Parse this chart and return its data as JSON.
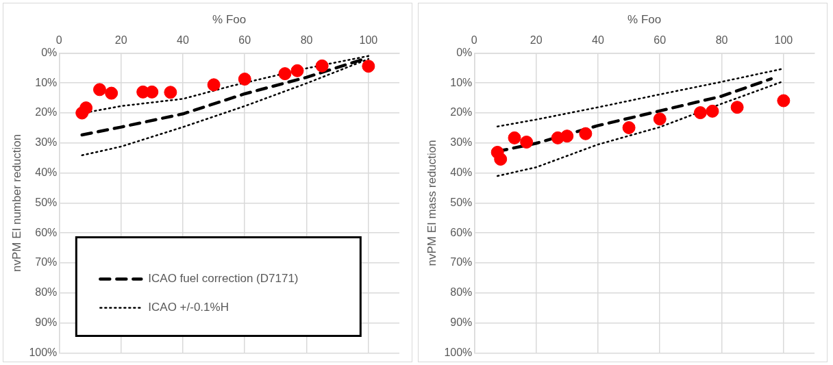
{
  "chart_data": [
    {
      "type": "scatter",
      "xlabel": "% Foo",
      "ylabel": "nvPM EI number reduction",
      "xlim": [
        0,
        110
      ],
      "xticks": [
        0,
        20,
        40,
        60,
        80,
        100
      ],
      "ylim": [
        100,
        0
      ],
      "yticks": [
        {
          "value": 0,
          "label": "0%"
        },
        {
          "value": 10,
          "label": "10%"
        },
        {
          "value": 20,
          "label": "20%"
        },
        {
          "value": 30,
          "label": "30%"
        },
        {
          "value": 40,
          "label": "40%"
        },
        {
          "value": 50,
          "label": "50%"
        },
        {
          "value": 60,
          "label": "60%"
        },
        {
          "value": 70,
          "label": "70%"
        },
        {
          "value": 80,
          "label": "80%"
        },
        {
          "value": 90,
          "label": "90%"
        },
        {
          "value": 100,
          "label": "100%"
        }
      ],
      "grid": true,
      "legend": "bottom",
      "marker": "circle",
      "series": [
        {
          "color": "#ff0000",
          "x": [
            7.4,
            8.7,
            13.1,
            16.9,
            27.1,
            30,
            36,
            50,
            60,
            73,
            77,
            85,
            100
          ],
          "values": [
            20.0,
            18.3,
            12.2,
            13.4,
            13.0,
            13.0,
            13.1,
            10.6,
            8.7,
            6.9,
            5.9,
            4.3,
            4.4
          ]
        },
        {
          "type": "line",
          "name": "ICAO fuel correction (D7171)",
          "color": "#000000",
          "line_style": "dashed",
          "marker": "none",
          "x": [
            7.4,
            20,
            40,
            60,
            80,
            98
          ],
          "values": [
            27.3,
            24.7,
            20.3,
            13.6,
            8.1,
            2.2
          ]
        },
        {
          "type": "line",
          "name": "ICAO +/-0.1%H",
          "color": "#000000",
          "line_style": "dotted",
          "marker": "none",
          "x": [
            10,
            20,
            40,
            56,
            80,
            100
          ],
          "values": [
            19.6,
            17.7,
            15.3,
            10.9,
            5.1,
            1.0
          ]
        },
        {
          "type": "line",
          "color": "#000000",
          "line_style": "dotted",
          "marker": "none",
          "x": [
            7.4,
            20,
            40,
            60,
            80,
            100
          ],
          "values": [
            34.1,
            31.2,
            24.7,
            17.7,
            10.1,
            2.0
          ]
        }
      ]
    },
    {
      "type": "scatter",
      "xlabel": "% Foo",
      "ylabel": "nvPM EI mass reduction",
      "xlim": [
        0,
        110
      ],
      "xticks": [
        0,
        20,
        40,
        60,
        80,
        100
      ],
      "ylim": [
        100,
        0
      ],
      "yticks": [
        {
          "value": 0,
          "label": "0%"
        },
        {
          "value": 10,
          "label": "10%"
        },
        {
          "value": 20,
          "label": "20%"
        },
        {
          "value": 30,
          "label": "30%"
        },
        {
          "value": 40,
          "label": "40%"
        },
        {
          "value": 50,
          "label": "50%"
        },
        {
          "value": 60,
          "label": "60%"
        },
        {
          "value": 70,
          "label": "70%"
        },
        {
          "value": 80,
          "label": "80%"
        },
        {
          "value": 90,
          "label": "90%"
        },
        {
          "value": 100,
          "label": "100%"
        }
      ],
      "grid": true,
      "marker": "circle",
      "series": [
        {
          "color": "#ff0000",
          "x": [
            7.5,
            8.5,
            13,
            16.9,
            27,
            30,
            36,
            50,
            60,
            73.1,
            77,
            85,
            100
          ],
          "values": [
            33.1,
            35.4,
            28.3,
            29.7,
            28.3,
            27.7,
            26.9,
            24.9,
            22.0,
            19.9,
            19.4,
            18.1,
            15.9
          ]
        },
        {
          "type": "line",
          "color": "#000000",
          "line_style": "dashed",
          "marker": "none",
          "x": [
            7.5,
            20,
            40,
            60,
            80,
            96
          ],
          "values": [
            32.8,
            30.1,
            24.2,
            19.3,
            14.4,
            8.6
          ]
        },
        {
          "type": "line",
          "color": "#000000",
          "line_style": "dotted",
          "x": [
            7.5,
            20,
            40,
            60,
            80,
            100
          ],
          "marker": "none",
          "values": [
            24.5,
            22.2,
            18.1,
            13.8,
            9.6,
            5.2
          ]
        },
        {
          "type": "line",
          "color": "#000000",
          "line_style": "dotted",
          "x": [
            7.5,
            20,
            40,
            60,
            80,
            100
          ],
          "marker": "none",
          "values": [
            41.0,
            38.1,
            30.5,
            24.7,
            16.9,
            9.4
          ]
        }
      ]
    }
  ]
}
